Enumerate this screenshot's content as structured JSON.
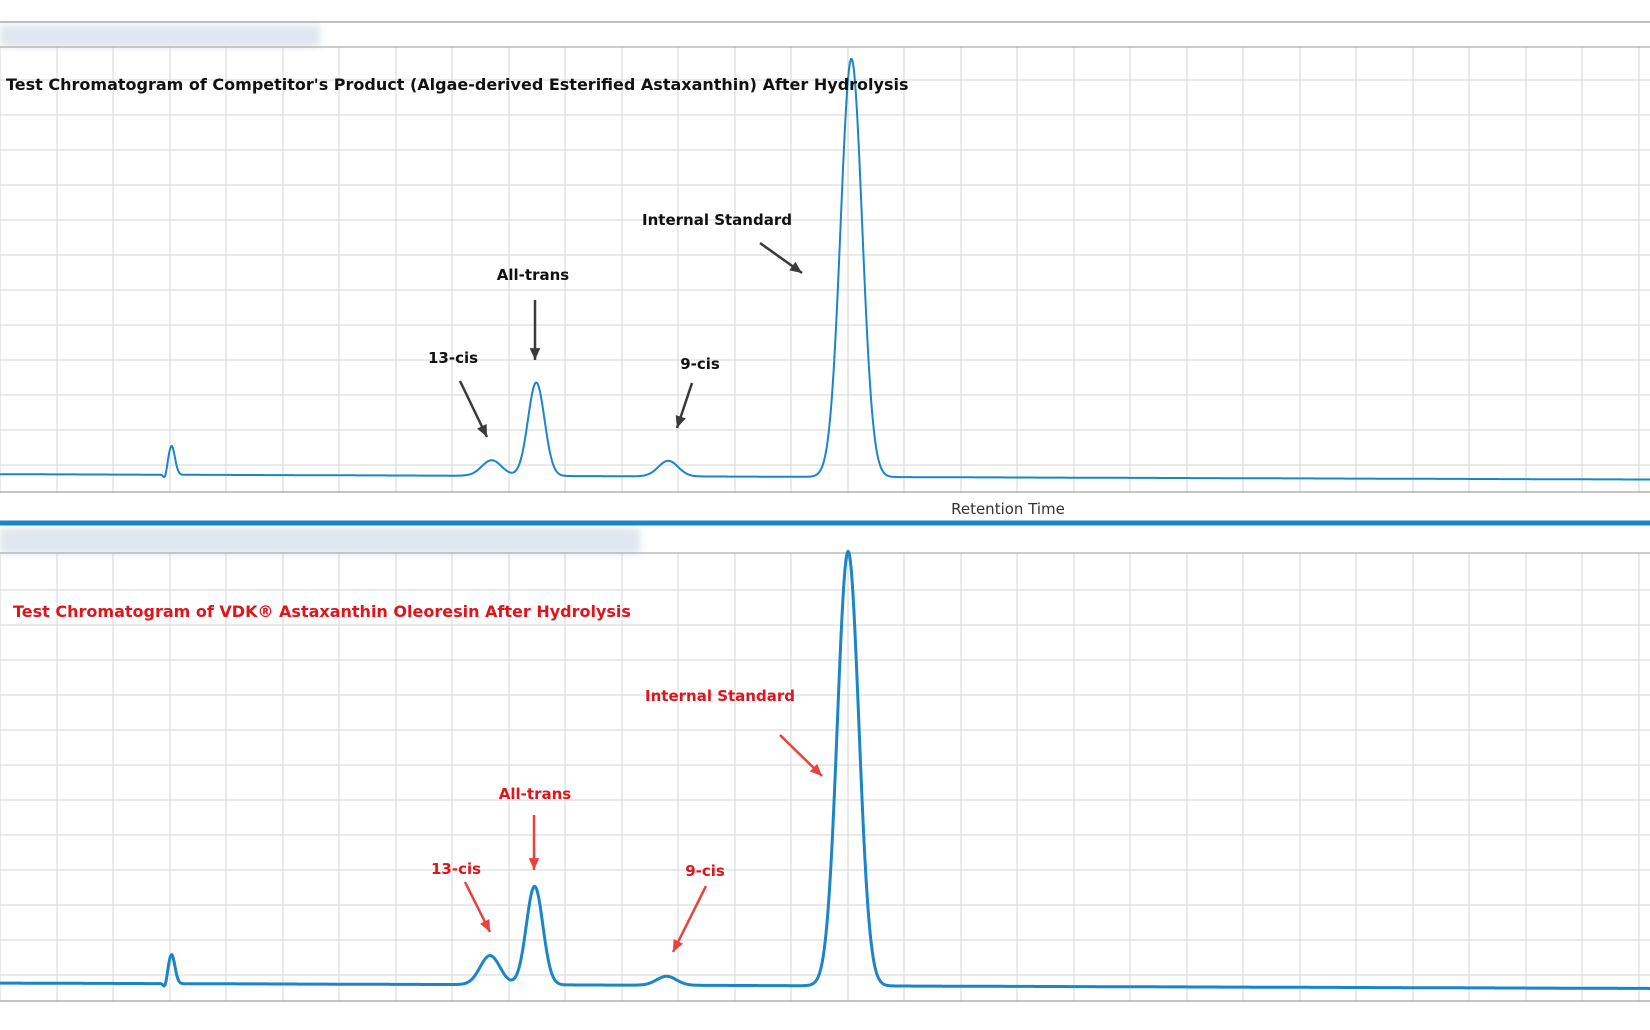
{
  "colors": {
    "trace": "#1a85c8",
    "grid": "#d6d6d6",
    "dark_annotation": "#111111",
    "dark_arrow": "#3a3a3a",
    "red_annotation": "#e0141b",
    "red_arrow": "#e8413f",
    "separator": "#1a85c8"
  },
  "chart_data": [
    {
      "type": "line",
      "title": "Test Chromatogram of Competitor's Product (Algae-derived Esterified Astaxanthin) After Hydrolysis",
      "xlabel": "Retention Time",
      "ylabel": "",
      "grid": true,
      "xlim": [
        0,
        1
      ],
      "ylim": [
        0,
        1
      ],
      "baseline": 0.04,
      "peaks": [
        {
          "label": "",
          "x": 0.104,
          "height": 0.065
        },
        {
          "label": "13-cis",
          "x": 0.298,
          "height": 0.035
        },
        {
          "label": "All-trans",
          "x": 0.325,
          "height": 0.21
        },
        {
          "label": "9-cis",
          "x": 0.405,
          "height": 0.035
        },
        {
          "label": "Internal Standard",
          "x": 0.516,
          "height": 0.94
        }
      ],
      "annotations": [
        "13-cis",
        "All-trans",
        "9-cis",
        "Internal Standard"
      ]
    },
    {
      "type": "line",
      "title": "Test Chromatogram of VDK® Astaxanthin Oleoresin After Hydrolysis",
      "xlabel": "",
      "ylabel": "",
      "grid": true,
      "xlim": [
        0,
        1
      ],
      "ylim": [
        0,
        1
      ],
      "baseline": 0.04,
      "peaks": [
        {
          "label": "",
          "x": 0.104,
          "height": 0.065
        },
        {
          "label": "13-cis",
          "x": 0.297,
          "height": 0.065
        },
        {
          "label": "All-trans",
          "x": 0.324,
          "height": 0.22
        },
        {
          "label": "9-cis",
          "x": 0.404,
          "height": 0.02
        },
        {
          "label": "Internal Standard",
          "x": 0.514,
          "height": 0.97
        }
      ],
      "annotations": [
        "13-cis",
        "All-trans",
        "9-cis",
        "Internal Standard"
      ]
    }
  ]
}
